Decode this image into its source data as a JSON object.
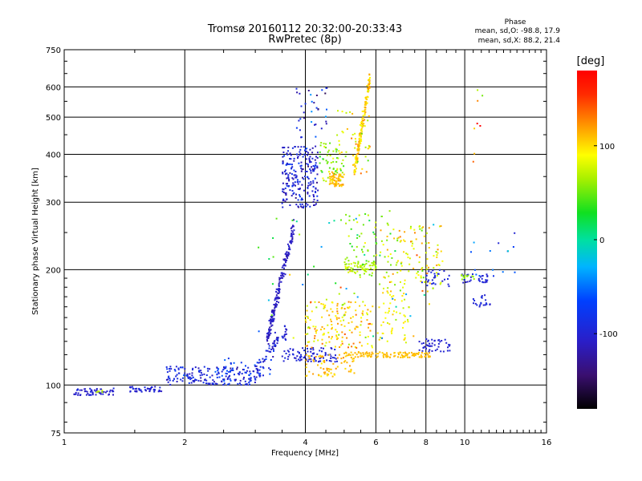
{
  "chart_data": {
    "type": "scatter",
    "title": "Tromsø 20160112 20:32:00-20:33:43",
    "subtitle": "RwPretec (8p)",
    "xlabel": "Frequency [MHz]",
    "ylabel": "Stationary phase Virtual Height [km]",
    "x_scale": "log",
    "y_scale": "log",
    "xlim": [
      1,
      16
    ],
    "ylim": [
      75,
      750
    ],
    "x_ticks": [
      1,
      2,
      4,
      6,
      8,
      10,
      16
    ],
    "x_tick_labels": [
      "1",
      "2",
      "4",
      "6",
      "8",
      "10",
      "16"
    ],
    "y_ticks": [
      75,
      100,
      200,
      300,
      400,
      500,
      600,
      750
    ],
    "y_tick_labels": [
      "75",
      "100",
      "200",
      "300",
      "400",
      "500",
      "600",
      "750"
    ],
    "grid": true,
    "phase_stats": {
      "title": "Phase",
      "line_o": "mean, sd,O: -98.8, 17.9",
      "line_x": "mean, sd,X:  88.2, 21.4"
    },
    "colorbar": {
      "label": "[deg]",
      "range": [
        -180,
        180
      ],
      "ticks": [
        100,
        0,
        -100
      ],
      "tick_labels": [
        "100",
        "0",
        "-100"
      ]
    },
    "clusters": [
      {
        "f": [
          1.05,
          1.33
        ],
        "h": [
          94,
          98
        ],
        "phase": -105,
        "n": 60,
        "spread": 12,
        "curve": "flat"
      },
      {
        "f": [
          1.15,
          1.25
        ],
        "h": [
          95,
          97
        ],
        "phase": 70,
        "n": 6,
        "spread": 10,
        "curve": "flat"
      },
      {
        "f": [
          1.45,
          1.75
        ],
        "h": [
          96,
          99
        ],
        "phase": -100,
        "n": 45,
        "spread": 12,
        "curve": "flat"
      },
      {
        "f": [
          1.8,
          3.0
        ],
        "h": [
          100,
          112
        ],
        "phase": -95,
        "n": 170,
        "spread": 25,
        "curve": "flat"
      },
      {
        "f": [
          2.4,
          3.3
        ],
        "h": [
          102,
          118
        ],
        "phase": -75,
        "n": 35,
        "spread": 25,
        "curve": "flat"
      },
      {
        "f": [
          3.0,
          3.6
        ],
        "h": [
          108,
          140
        ],
        "phase": -100,
        "n": 70,
        "spread": 20,
        "curve": "up"
      },
      {
        "f": [
          3.2,
          3.75
        ],
        "h": [
          130,
          260
        ],
        "phase": -110,
        "n": 180,
        "spread": 10,
        "curve": "up"
      },
      {
        "f": [
          3.5,
          4.8
        ],
        "h": [
          115,
          125
        ],
        "phase": -100,
        "n": 90,
        "spread": 8,
        "curve": "flat"
      },
      {
        "f": [
          3.5,
          4.3
        ],
        "h": [
          290,
          420
        ],
        "phase": -100,
        "n": 230,
        "spread": 30,
        "curve": "flat"
      },
      {
        "f": [
          3.8,
          4.6
        ],
        "h": [
          440,
          600
        ],
        "phase": -95,
        "n": 35,
        "spread": 60,
        "curve": "flat"
      },
      {
        "f": [
          4.3,
          5.0
        ],
        "h": [
          340,
          430
        ],
        "phase": 60,
        "n": 60,
        "spread": 30,
        "curve": "flat"
      },
      {
        "f": [
          4.6,
          5.0
        ],
        "h": [
          330,
          360
        ],
        "phase": 110,
        "n": 60,
        "spread": 10,
        "curve": "flat"
      },
      {
        "f": [
          5.3,
          5.8
        ],
        "h": [
          360,
          630
        ],
        "phase": 105,
        "n": 160,
        "spread": 20,
        "curve": "up"
      },
      {
        "f": [
          4.8,
          5.8
        ],
        "h": [
          350,
          520
        ],
        "phase": 90,
        "n": 40,
        "spread": 40,
        "curve": "flat"
      },
      {
        "f": [
          4.0,
          5.9
        ],
        "h": [
          125,
          165
        ],
        "phase": 100,
        "n": 160,
        "spread": 35,
        "curve": "flat"
      },
      {
        "f": [
          4.0,
          5.3
        ],
        "h": [
          105,
          120
        ],
        "phase": 110,
        "n": 70,
        "spread": 12,
        "curve": "flat"
      },
      {
        "f": [
          5.0,
          8.2
        ],
        "h": [
          118,
          122
        ],
        "phase": 110,
        "n": 120,
        "spread": 5,
        "curve": "flat"
      },
      {
        "f": [
          7.7,
          9.2
        ],
        "h": [
          122,
          132
        ],
        "phase": -100,
        "n": 45,
        "spread": 5,
        "curve": "flat"
      },
      {
        "f": [
          6.1,
          7.3
        ],
        "h": [
          128,
          175
        ],
        "phase": 90,
        "n": 50,
        "spread": 20,
        "curve": "flat"
      },
      {
        "f": [
          5.0,
          6.0
        ],
        "h": [
          195,
          210
        ],
        "phase": 70,
        "n": 60,
        "spread": 12,
        "curve": "flat"
      },
      {
        "f": [
          6.1,
          8.8
        ],
        "h": [
          175,
          260
        ],
        "phase": 90,
        "n": 120,
        "spread": 40,
        "curve": "flat"
      },
      {
        "f": [
          5.0,
          6.5
        ],
        "h": [
          190,
          280
        ],
        "phase": 60,
        "n": 60,
        "spread": 40,
        "curve": "flat"
      },
      {
        "f": [
          7.8,
          9.2
        ],
        "h": [
          180,
          200
        ],
        "phase": -95,
        "n": 30,
        "spread": 10,
        "curve": "flat"
      },
      {
        "f": [
          9.8,
          11.5
        ],
        "h": [
          185,
          195
        ],
        "phase": -100,
        "n": 30,
        "spread": 8,
        "curve": "flat"
      },
      {
        "f": [
          9.8,
          10.6
        ],
        "h": [
          188,
          194
        ],
        "phase": 60,
        "n": 12,
        "spread": 5,
        "curve": "flat"
      },
      {
        "f": [
          10.5,
          11.6
        ],
        "h": [
          160,
          175
        ],
        "phase": -100,
        "n": 20,
        "spread": 10,
        "curve": "flat"
      },
      {
        "f": [
          10.2,
          13.5
        ],
        "h": [
          190,
          250
        ],
        "phase": -60,
        "n": 15,
        "spread": 40,
        "curve": "flat"
      },
      {
        "f": [
          10.5,
          11.3
        ],
        "h": [
          380,
          600
        ],
        "phase": 130,
        "n": 8,
        "spread": 60,
        "curve": "flat"
      },
      {
        "f": [
          3.0,
          8.8
        ],
        "h": [
          130,
          290
        ],
        "phase": 50,
        "n": 60,
        "spread": 80,
        "curve": "flat"
      }
    ]
  }
}
